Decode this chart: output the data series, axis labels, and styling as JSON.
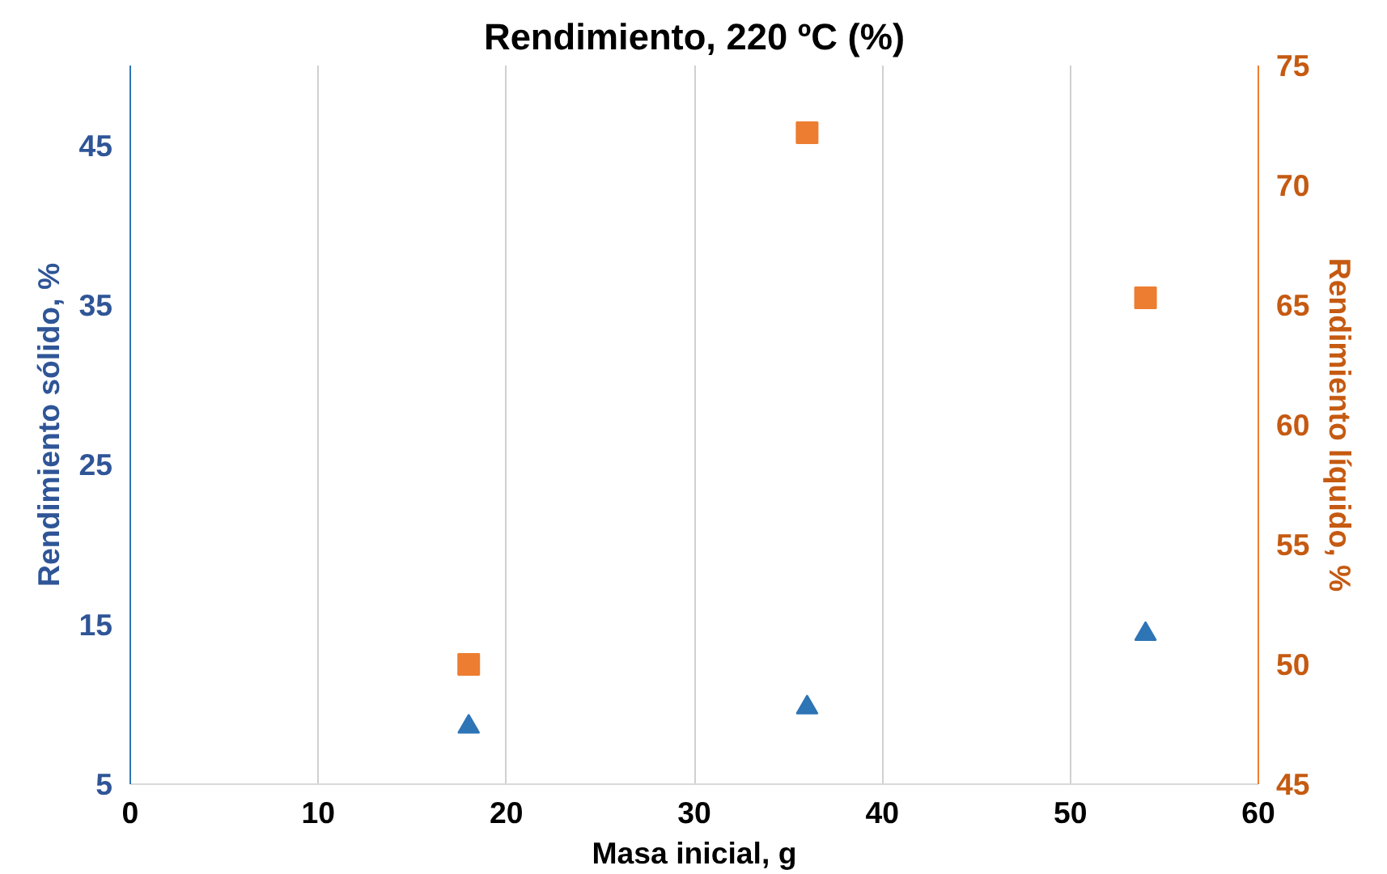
{
  "chart_data": {
    "type": "scatter",
    "title": "Rendimiento, 220 ºC (%)",
    "xlabel": "Masa inicial, g",
    "ylabel": "Rendimiento sólido, %",
    "y2label": "Rendimiento líquido, %",
    "x": [
      18,
      36,
      54
    ],
    "series": [
      {
        "color": "#2e75b6",
        "values": [
          8.6,
          9.8,
          14.4
        ],
        "marker": "triangle"
      },
      {
        "color": "#ed7d31",
        "values": [
          50.0,
          72.2,
          65.3
        ],
        "marker": "square",
        "axis": "y2"
      }
    ],
    "xlim": [
      0,
      60
    ],
    "xticks": [
      0,
      10,
      20,
      30,
      40,
      50,
      60
    ],
    "ylim": [
      5,
      50
    ],
    "yticks": [
      5,
      15,
      25,
      35,
      45
    ],
    "y2lim": [
      45,
      75
    ],
    "y2ticks": [
      45,
      50,
      55,
      60,
      65,
      70,
      75
    ],
    "grid": "x"
  }
}
